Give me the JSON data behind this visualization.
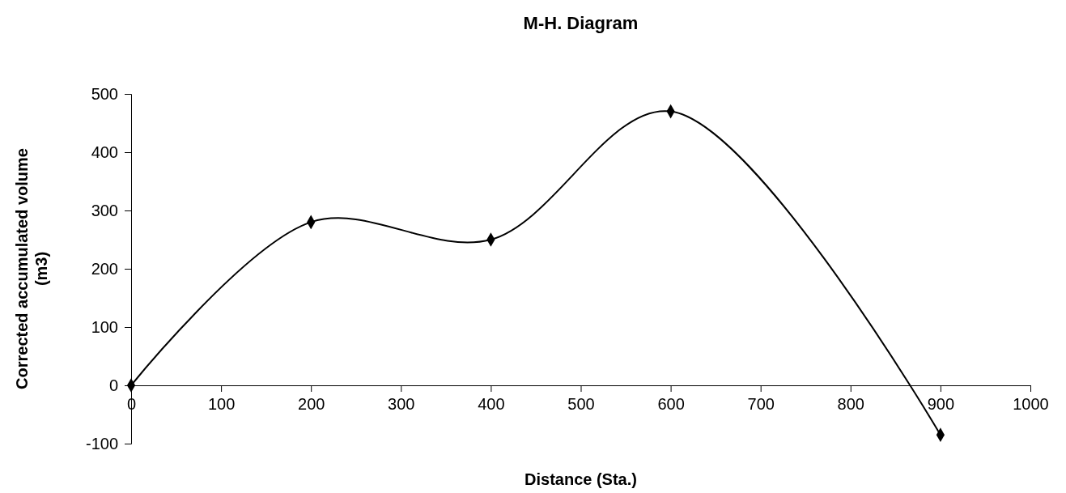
{
  "chart_data": {
    "type": "line",
    "title": "M-H. Diagram",
    "xlabel": "Distance (Sta.)",
    "ylabel": "Corrected accumulated volume (m3)",
    "x": [
      0,
      200,
      400,
      600,
      900
    ],
    "series": [
      {
        "color": "#000000",
        "values": [
          0,
          280,
          250,
          470,
          -85
        ]
      }
    ],
    "xlim": [
      0,
      1000
    ],
    "xticks": [
      0,
      100,
      200,
      300,
      400,
      500,
      600,
      700,
      800,
      900,
      1000
    ],
    "ylim": [
      -100,
      500
    ],
    "yticks": [
      -100,
      0,
      100,
      200,
      300,
      400,
      500
    ],
    "marker": "diamond",
    "line_style": "solid"
  }
}
